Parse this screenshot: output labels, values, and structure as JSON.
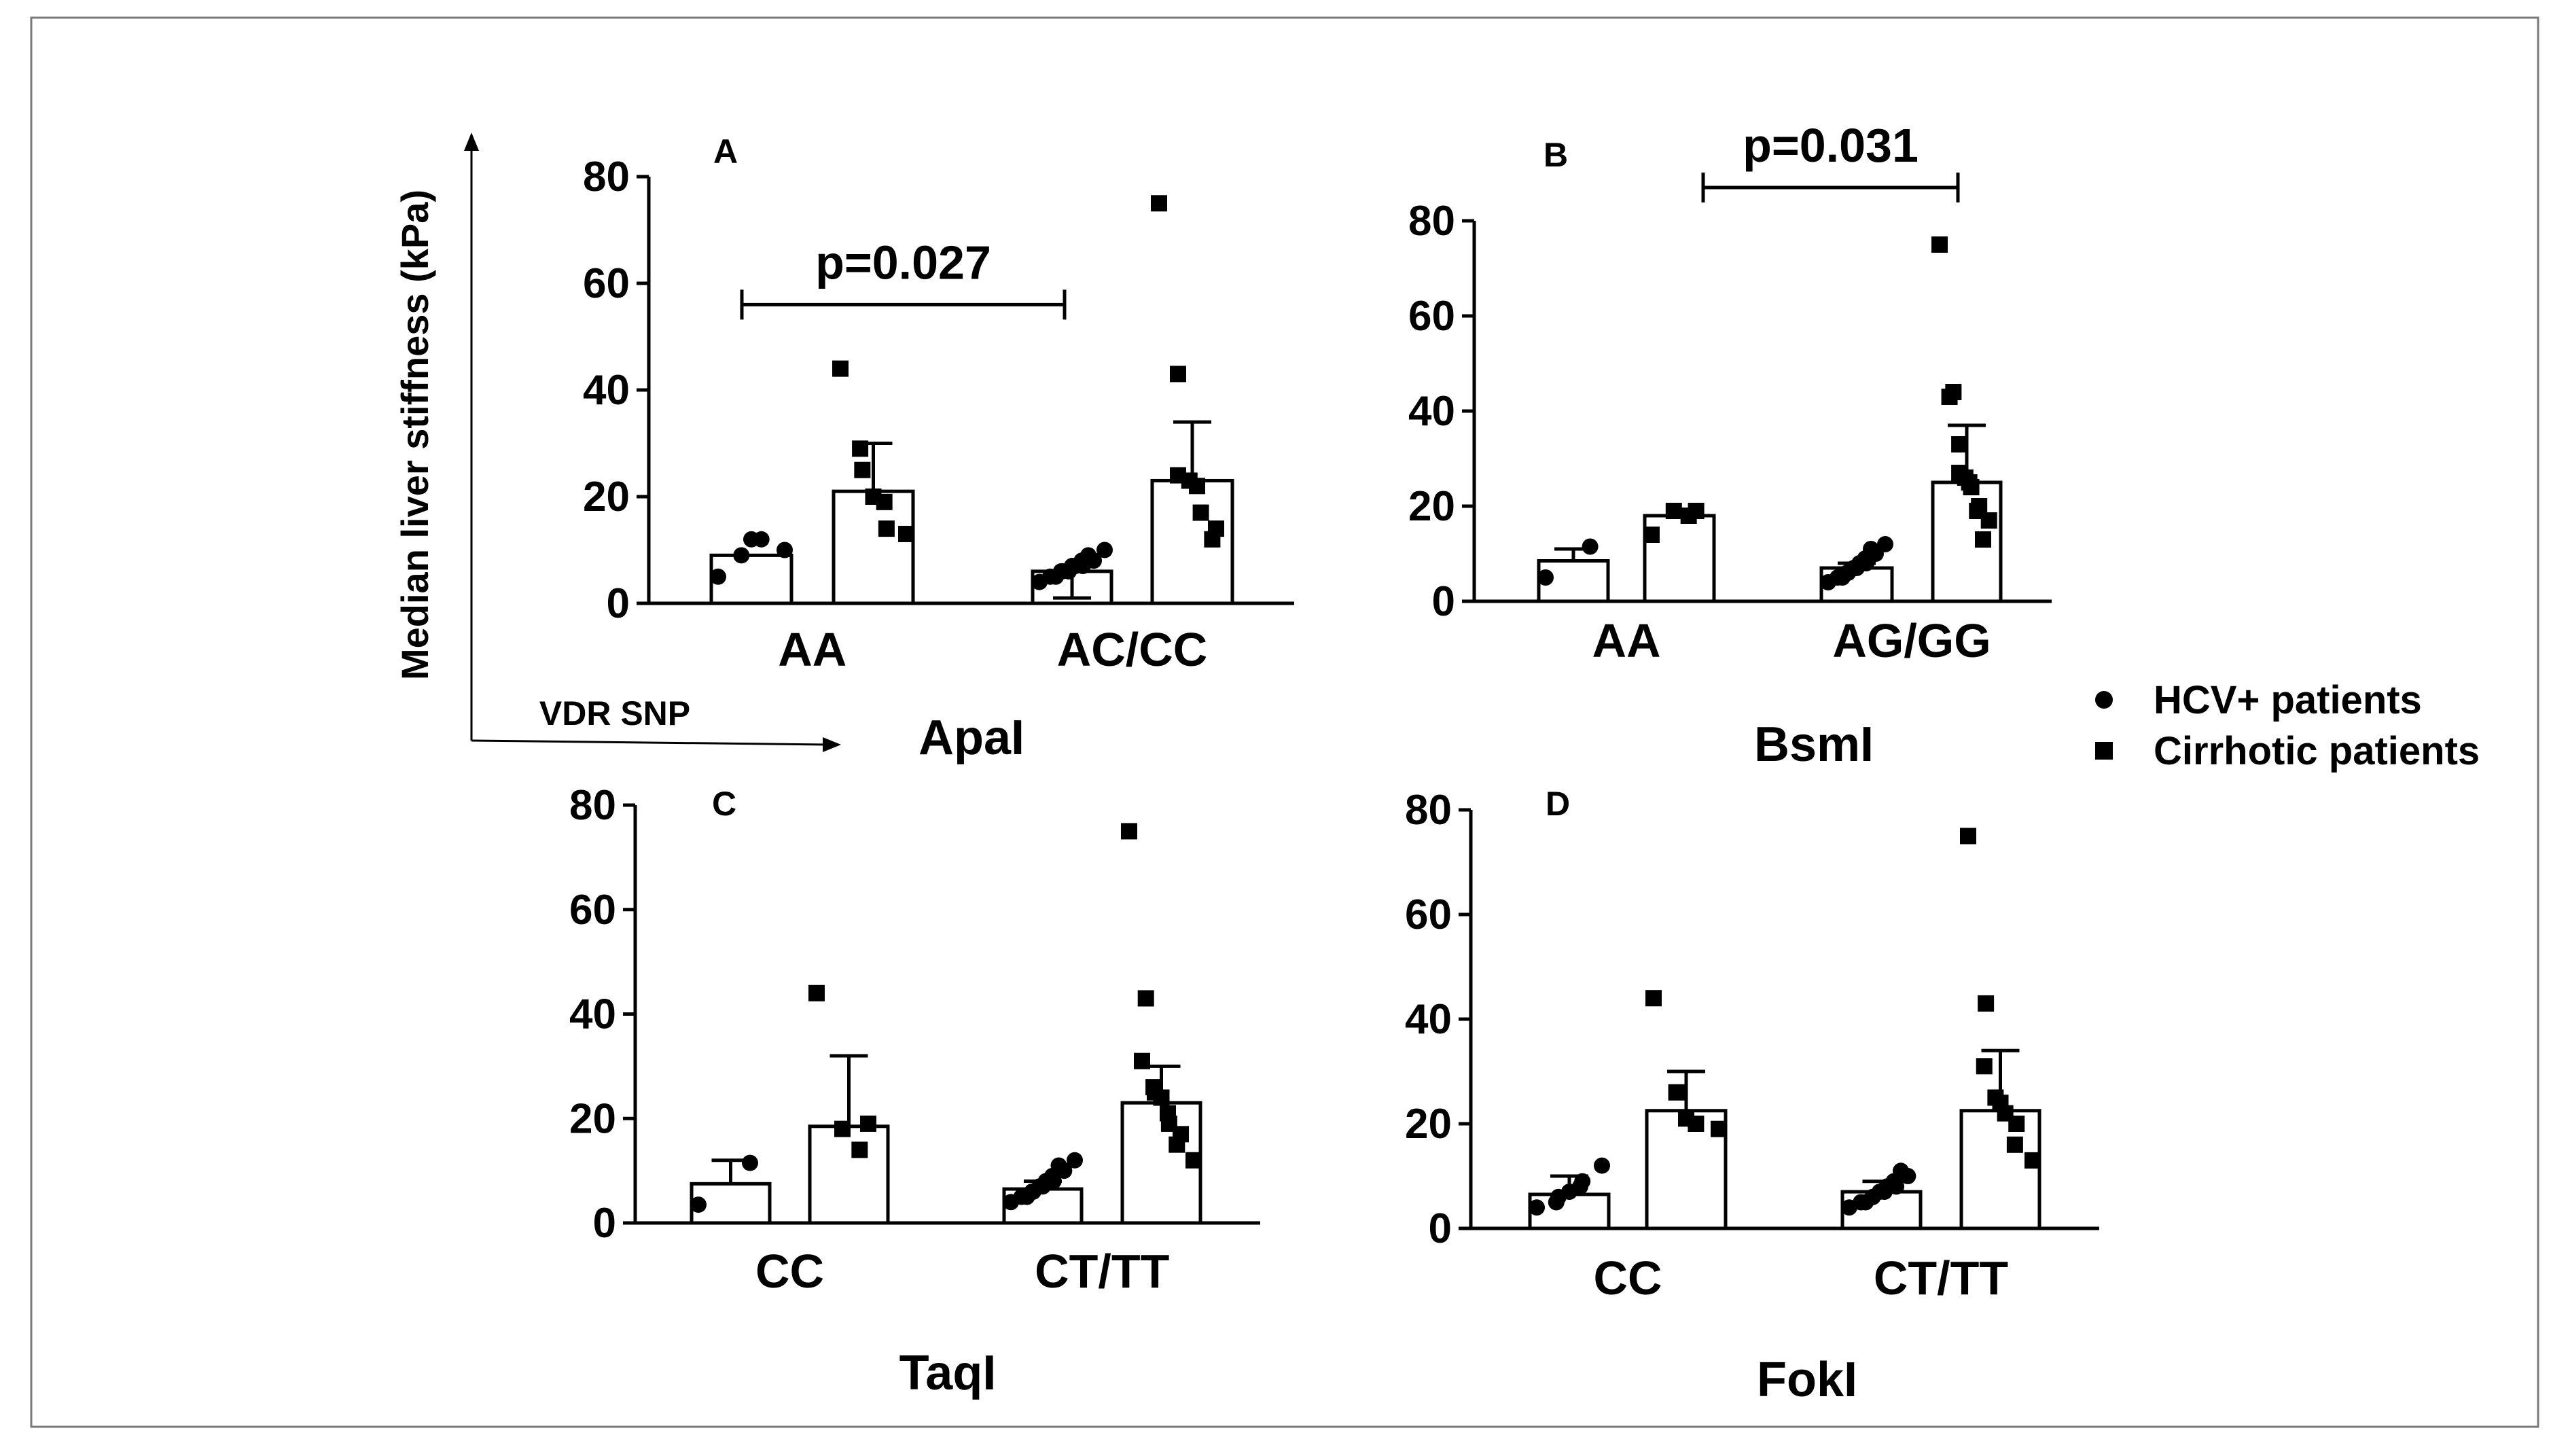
{
  "y_axis_label": "Median liver stiffness (kPa)",
  "x_axis_label": "VDR SNP",
  "legend": {
    "items": [
      {
        "label": "HCV+ patients",
        "marker": "circle"
      },
      {
        "label": "Cirrhotic patients",
        "marker": "square"
      }
    ]
  },
  "chart_data": [
    {
      "panel": "A",
      "type": "bar",
      "gene": "ApaI",
      "ylim": [
        0,
        80
      ],
      "yticks": [
        0,
        20,
        40,
        60,
        80
      ],
      "categories": [
        "AA",
        "AC/CC"
      ],
      "series": [
        {
          "name": "HCV+ patients",
          "marker": "circle",
          "means": [
            9,
            6
          ],
          "errors": [
            null,
            1
          ],
          "points": [
            [
              5,
              9,
              12,
              12,
              10
            ],
            [
              4,
              5,
              5,
              6,
              6,
              6,
              7,
              7,
              7,
              8,
              8,
              9,
              10
            ]
          ]
        },
        {
          "name": "Cirrhotic patients",
          "marker": "square",
          "means": [
            21,
            23
          ],
          "errors": [
            30,
            34
          ],
          "points": [
            [
              44,
              29,
              25,
              20,
              19,
              14,
              13
            ],
            [
              75,
              43,
              24,
              23,
              22,
              17,
              14,
              12
            ]
          ]
        }
      ],
      "comparison": {
        "text": "p=0.027",
        "from_group": 0,
        "to_group": 1,
        "y": 56
      }
    },
    {
      "panel": "B",
      "type": "bar",
      "gene": "BsmI",
      "ylim": [
        0,
        80
      ],
      "yticks": [
        0,
        20,
        40,
        60,
        80
      ],
      "categories": [
        "AA",
        "AG/GG"
      ],
      "series": [
        {
          "name": "HCV+ patients",
          "marker": "circle",
          "means": [
            8.5,
            7
          ],
          "errors": [
            11,
            8
          ],
          "points": [
            [
              5,
              11.5
            ],
            [
              4,
              5,
              5,
              6,
              6,
              7,
              7,
              8,
              8,
              9,
              10,
              11,
              12
            ]
          ]
        },
        {
          "name": "Cirrhotic patients",
          "marker": "square",
          "means": [
            18,
            25
          ],
          "errors": [
            null,
            37
          ],
          "points": [
            [
              14,
              19,
              18,
              19
            ],
            [
              75,
              44,
              43,
              33,
              27,
              26,
              25,
              24,
              20,
              19,
              17,
              13
            ]
          ]
        }
      ],
      "comparison": {
        "text": "p=0.031",
        "from_group": 0.5,
        "to_group": 1,
        "y": 87
      }
    },
    {
      "panel": "C",
      "type": "bar",
      "gene": "TaqI",
      "ylim": [
        0,
        80
      ],
      "yticks": [
        0,
        20,
        40,
        60,
        80
      ],
      "categories": [
        "CC",
        "CT/TT"
      ],
      "series": [
        {
          "name": "HCV+ patients",
          "marker": "circle",
          "means": [
            7.5,
            6.5
          ],
          "errors": [
            12,
            8
          ],
          "points": [
            [
              3.5,
              11.5
            ],
            [
              4,
              5,
              5,
              6,
              6,
              7,
              7,
              8,
              8,
              9,
              10,
              11,
              12
            ]
          ]
        },
        {
          "name": "Cirrhotic patients",
          "marker": "square",
          "means": [
            18.5,
            23
          ],
          "errors": [
            32,
            30
          ],
          "points": [
            [
              44,
              18,
              14,
              19
            ],
            [
              75,
              43,
              31,
              26,
              25,
              24,
              21,
              19,
              17,
              15,
              12
            ]
          ]
        }
      ],
      "comparison": null
    },
    {
      "panel": "D",
      "type": "bar",
      "gene": "FokI",
      "ylim": [
        0,
        80
      ],
      "yticks": [
        0,
        20,
        40,
        60,
        80
      ],
      "categories": [
        "CC",
        "CT/TT"
      ],
      "series": [
        {
          "name": "HCV+ patients",
          "marker": "circle",
          "means": [
            6.5,
            7
          ],
          "errors": [
            10,
            9
          ],
          "points": [
            [
              4,
              5,
              6,
              7,
              8,
              9,
              12
            ],
            [
              4,
              5,
              5,
              6,
              6,
              7,
              7,
              8,
              8,
              9,
              10,
              11
            ]
          ]
        },
        {
          "name": "Cirrhotic patients",
          "marker": "square",
          "means": [
            22.5,
            22.5
          ],
          "errors": [
            30,
            34
          ],
          "points": [
            [
              44,
              26,
              21,
              20,
              19
            ],
            [
              75,
              43,
              31,
              25,
              24,
              22,
              20,
              16,
              13
            ]
          ]
        }
      ],
      "comparison": null
    }
  ]
}
